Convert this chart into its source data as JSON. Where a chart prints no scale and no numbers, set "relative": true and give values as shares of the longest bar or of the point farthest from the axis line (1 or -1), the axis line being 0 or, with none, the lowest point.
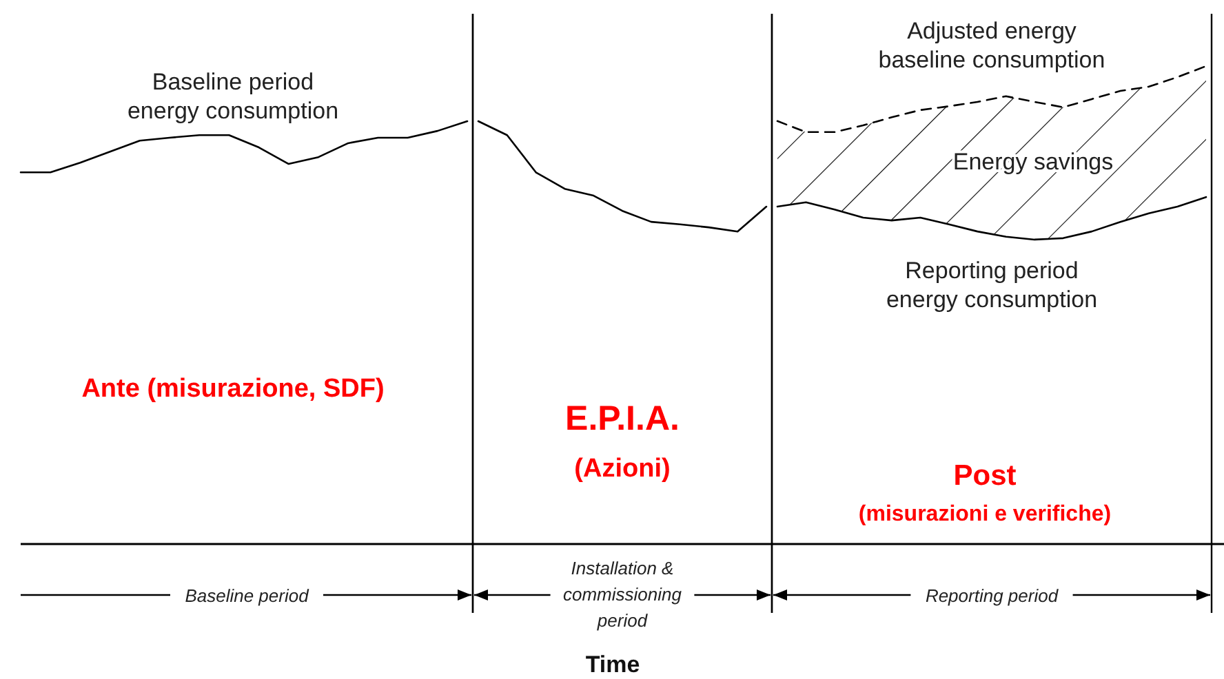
{
  "chart_data": [
    {
      "type": "line",
      "relative": true,
      "xlabel": "Baseline period",
      "grid": false,
      "marker": "none",
      "line_style": "solid",
      "categories": [
        null,
        null,
        null,
        null,
        null,
        null,
        null,
        null,
        null,
        null,
        null,
        null,
        null,
        null,
        null,
        null
      ],
      "series": [
        {
          "name": "Baseline period energy consumption",
          "color": "#000000",
          "values": [
            0.879,
            0.879,
            0.902,
            0.928,
            0.954,
            0.961,
            0.967,
            0.967,
            0.938,
            0.899,
            0.915,
            0.948,
            0.961,
            0.961,
            0.977,
            1
          ]
        }
      ],
      "annotations": [
        "Ante (misurazione, SDF)"
      ]
    },
    {
      "type": "line",
      "relative": true,
      "xlabel": "Installation & commissioning period",
      "grid": false,
      "marker": "none",
      "line_style": "solid",
      "categories": [
        null,
        null,
        null,
        null,
        null,
        null,
        null,
        null,
        null,
        null,
        null
      ],
      "series": [
        {
          "color": "#000000",
          "values": [
            1,
            0.967,
            0.879,
            0.84,
            0.824,
            0.788,
            0.762,
            0.756,
            0.749,
            0.739,
            0.798
          ]
        }
      ],
      "annotations": [
        "E.P.I.A.",
        "(Azioni)",
        "Time"
      ]
    },
    {
      "type": "line",
      "relative": true,
      "xlabel": "Reporting period",
      "grid": false,
      "marker": "none",
      "line_style": "solid",
      "categories": [
        null,
        null,
        null,
        null,
        null,
        null,
        null,
        null,
        null,
        null,
        null,
        null,
        null,
        null,
        null,
        null
      ],
      "series": [
        {
          "name": "Reporting period energy consumption",
          "color": "#000000",
          "values": [
            0.706,
            0.715,
            0.7,
            0.683,
            0.677,
            0.683,
            0.669,
            0.654,
            0.643,
            0.637,
            0.64,
            0.654,
            0.674,
            0.692,
            0.706,
            0.726
          ]
        },
        {
          "name": "Adjusted energy baseline consumption",
          "color": "#000000",
          "line_style": "dashed",
          "values": [
            0.885,
            0.862,
            0.862,
            0.876,
            0.893,
            0.908,
            0.916,
            0.925,
            0.937,
            0.925,
            0.914,
            0.931,
            0.948,
            0.957,
            0.977,
            1
          ],
          "lower": [
            0.706,
            0.715,
            0.7,
            0.683,
            0.677,
            0.683,
            0.669,
            0.654,
            0.643,
            0.637,
            0.64,
            0.654,
            0.674,
            0.692,
            0.706,
            0.726
          ],
          "upper": [
            0.885,
            0.862,
            0.862,
            0.876,
            0.893,
            0.908,
            0.916,
            0.925,
            0.937,
            0.925,
            0.914,
            0.931,
            0.948,
            0.957,
            0.977,
            1
          ]
        }
      ],
      "annotations": [
        "Post",
        "(misurazioni e verifiche)",
        "Energy savings"
      ]
    }
  ]
}
